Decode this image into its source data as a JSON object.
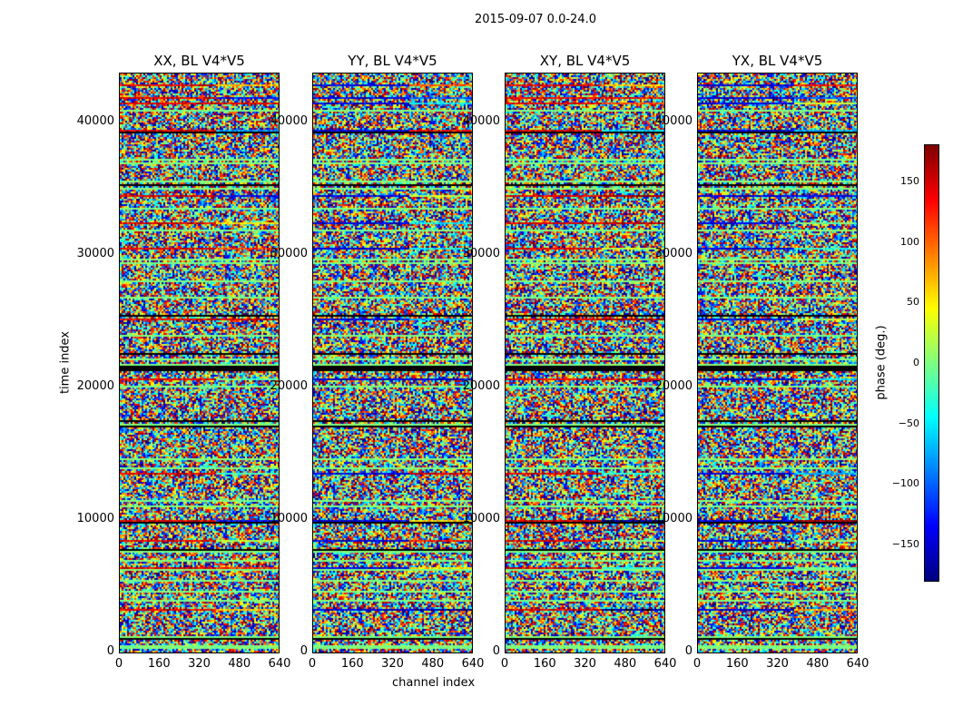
{
  "chart_data": {
    "type": "heatmap",
    "title": "2015-09-07 0.0-24.0",
    "xlabel": "channel index",
    "ylabel": "time index",
    "xlim": [
      0,
      640
    ],
    "ylim": [
      0,
      43700
    ],
    "xticks": [
      "0",
      "160",
      "320",
      "480",
      "640"
    ],
    "yticks": [
      "0",
      "10000",
      "20000",
      "30000",
      "40000"
    ],
    "ytick_values": [
      0,
      10000,
      20000,
      30000,
      40000
    ],
    "xtick_values": [
      0,
      160,
      320,
      480,
      640
    ],
    "panels": [
      {
        "title": "XX, BL V4*V5"
      },
      {
        "title": "YY, BL V4*V5"
      },
      {
        "title": "XY, BL V4*V5"
      },
      {
        "title": "YX, BL V4*V5"
      }
    ],
    "colorbar": {
      "label": "phase (deg.)",
      "colormap": "jet",
      "range": [
        -180,
        180
      ],
      "ticks": [
        "150",
        "100",
        "50",
        "0",
        "−50",
        "−100",
        "−150"
      ],
      "tick_values": [
        150,
        100,
        50,
        0,
        -50,
        -100,
        -150
      ]
    },
    "values": "phase noise with horizontal time-band structure (per-pixel values not legible)"
  }
}
